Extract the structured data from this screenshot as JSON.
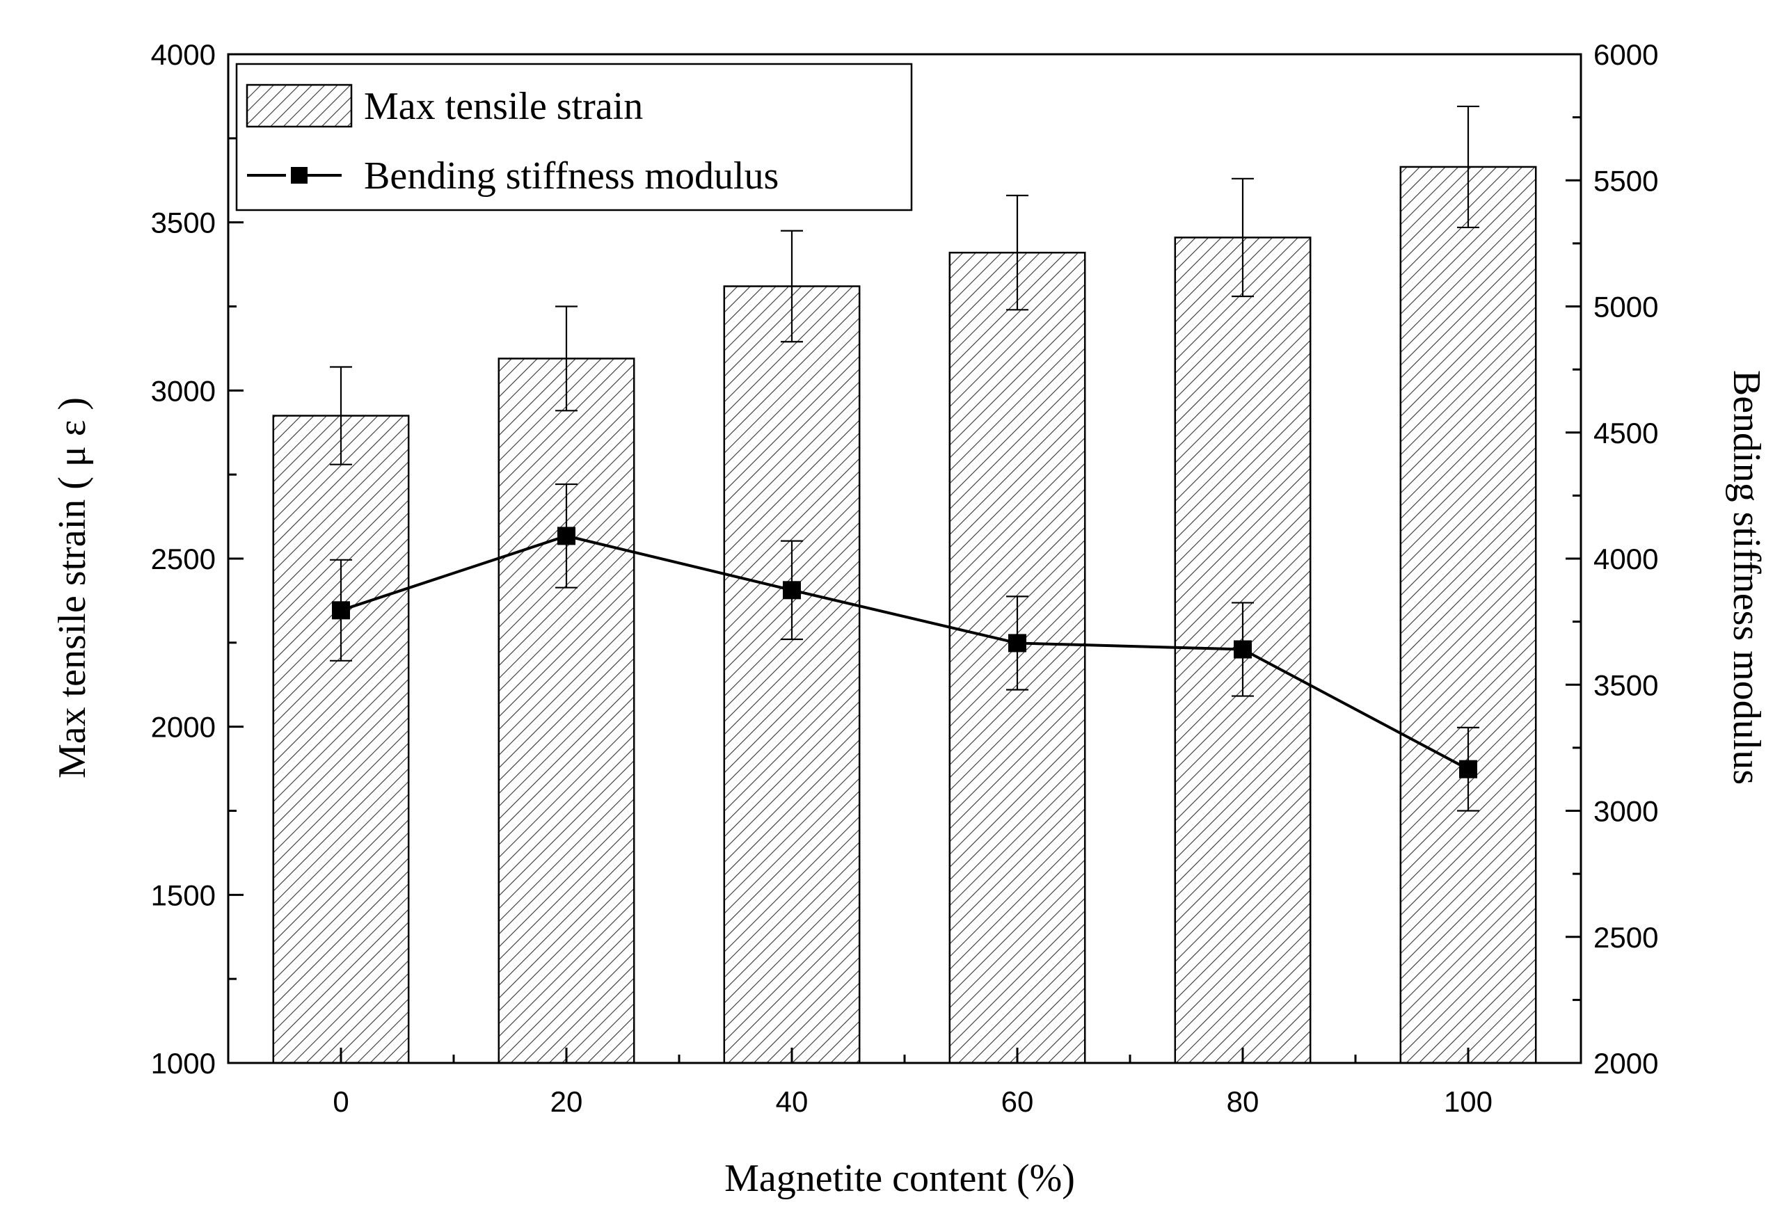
{
  "chart_data": {
    "type": "bar",
    "categories": [
      "0",
      "20",
      "40",
      "60",
      "80",
      "100"
    ],
    "x_label": "Magnetite content (%)",
    "y_left_label": "Max tensile strain ( μ ε )",
    "y_right_label": "Bending stiffness modulus",
    "y_left_range": [
      1000,
      4000
    ],
    "y_left_ticks": [
      "1000",
      "1500",
      "2000",
      "2500",
      "3000",
      "3500",
      "4000"
    ],
    "y_right_range": [
      2000,
      6000
    ],
    "y_right_ticks": [
      "2000",
      "2500",
      "3000",
      "3500",
      "4000",
      "4500",
      "5000",
      "5500",
      "6000"
    ],
    "legend_position": "top-left",
    "series": [
      {
        "name": "Max tensile strain",
        "kind": "bar",
        "axis": "left",
        "values": [
          2925,
          3095,
          3310,
          3410,
          3455,
          3665
        ],
        "errors": [
          145,
          155,
          165,
          170,
          175,
          180
        ]
      },
      {
        "name": "Bending stiffness modulus",
        "kind": "line",
        "axis": "right",
        "values": [
          3795,
          4090,
          3875,
          3665,
          3640,
          3165
        ],
        "errors": [
          200,
          205,
          195,
          185,
          185,
          165
        ]
      }
    ]
  }
}
